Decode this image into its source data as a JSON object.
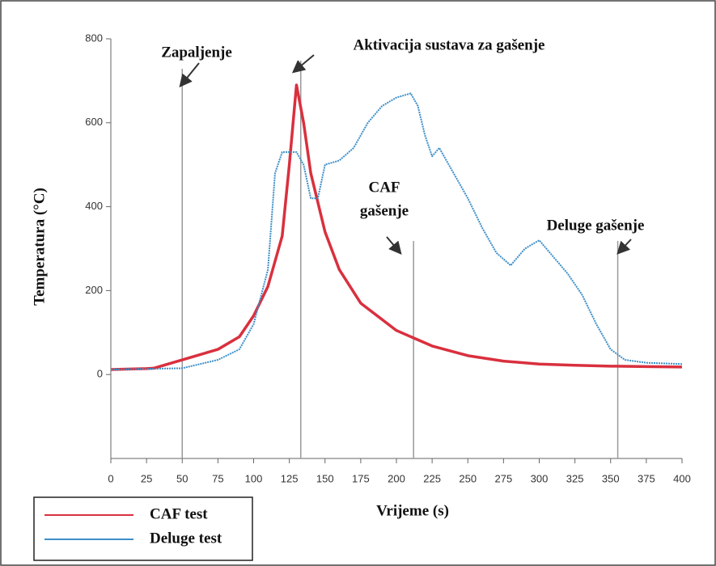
{
  "chart_data": {
    "type": "line",
    "xlabel": "Vrijeme (s)",
    "ylabel": "Temperatura (°C)",
    "xlim": [
      0,
      400
    ],
    "xticks": [
      0,
      25,
      50,
      75,
      100,
      125,
      150,
      175,
      200,
      225,
      250,
      275,
      300,
      325,
      350,
      375,
      400
    ],
    "ylim": [
      -200,
      800
    ],
    "yticks": [
      0,
      200,
      400,
      600,
      800
    ],
    "legend": "bottom-left",
    "series": [
      {
        "name": "CAF test",
        "color": "#d9303e",
        "x": [
          0,
          25,
          30,
          50,
          75,
          90,
          100,
          110,
          115,
          120,
          125,
          130,
          135,
          140,
          150,
          160,
          175,
          200,
          225,
          250,
          275,
          300,
          325,
          350,
          375,
          400
        ],
        "values": [
          12,
          14,
          15,
          35,
          60,
          90,
          140,
          210,
          270,
          330,
          500,
          690,
          600,
          480,
          340,
          250,
          170,
          105,
          68,
          45,
          32,
          25,
          22,
          20,
          19,
          18
        ]
      },
      {
        "name": "Deluge test",
        "color": "#3d8fc8",
        "x": [
          0,
          50,
          75,
          90,
          100,
          110,
          115,
          120,
          130,
          135,
          140,
          145,
          150,
          160,
          170,
          180,
          190,
          200,
          210,
          215,
          220,
          225,
          230,
          240,
          250,
          260,
          270,
          280,
          290,
          300,
          310,
          320,
          330,
          340,
          350,
          360,
          375,
          400
        ],
        "values": [
          12,
          15,
          35,
          60,
          120,
          250,
          480,
          530,
          530,
          500,
          420,
          420,
          500,
          510,
          540,
          600,
          640,
          660,
          670,
          640,
          570,
          520,
          540,
          480,
          420,
          350,
          290,
          260,
          300,
          320,
          280,
          240,
          190,
          120,
          60,
          35,
          28,
          25
        ]
      }
    ],
    "annotations": [
      {
        "x": 50,
        "lines": [
          "Zapaljenje"
        ]
      },
      {
        "x": 133,
        "lines": [
          "Aktivacija sustava za gašenje"
        ]
      },
      {
        "x": 212,
        "lines": [
          "CAF",
          "gašenje"
        ]
      },
      {
        "x": 355,
        "lines": [
          "Deluge gašenje"
        ]
      }
    ]
  }
}
